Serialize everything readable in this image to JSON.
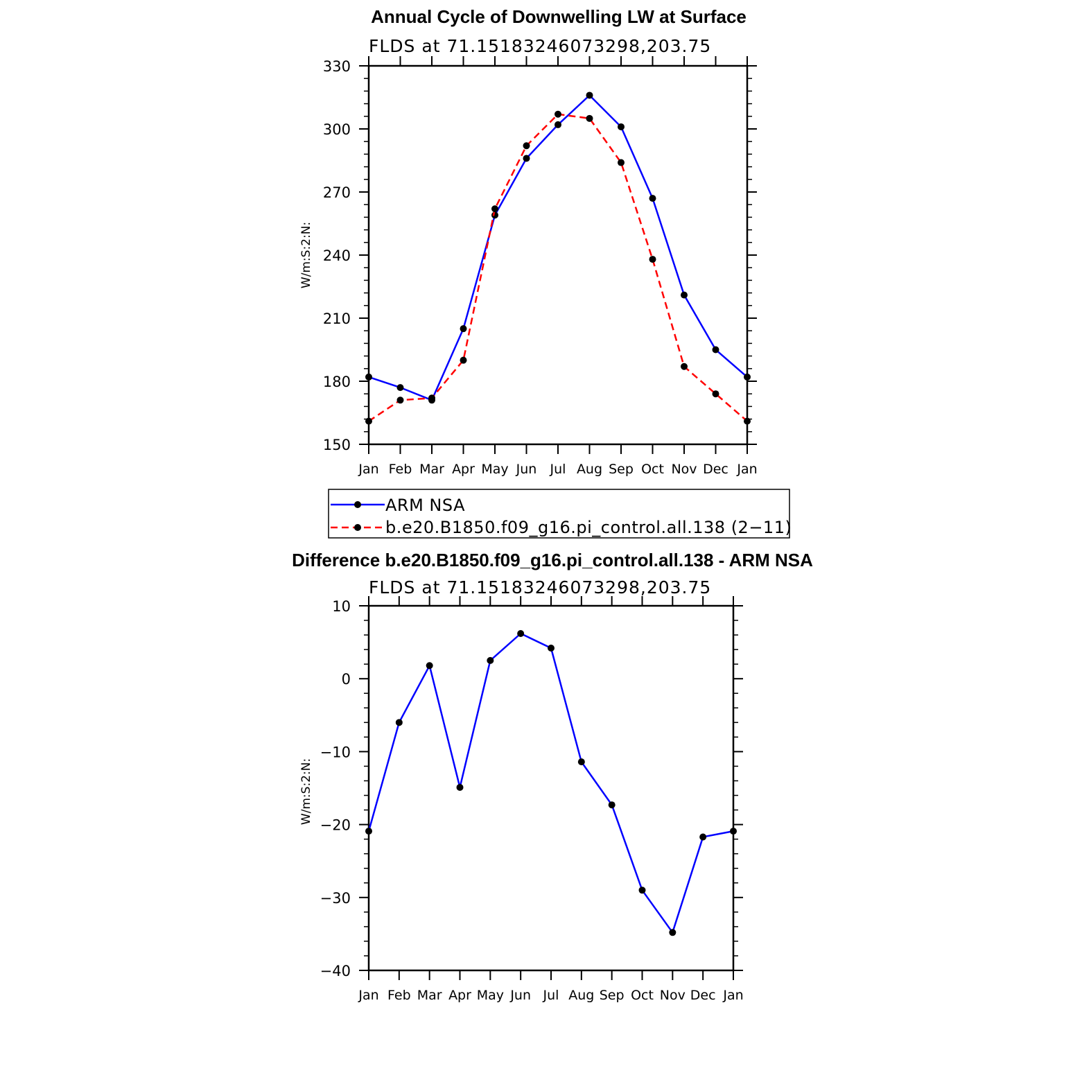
{
  "chart_data": [
    {
      "type": "line",
      "title": "Annual Cycle of Downwelling LW at Surface",
      "subtitle": "FLDS at 71.15183246073298,203.75",
      "ylabel": "W/m:S:2:N:",
      "xlabel": "",
      "categories": [
        "Jan",
        "Feb",
        "Mar",
        "Apr",
        "May",
        "Jun",
        "Jul",
        "Aug",
        "Sep",
        "Oct",
        "Nov",
        "Dec",
        "Jan"
      ],
      "ylim": [
        150,
        330
      ],
      "yticks": [
        150,
        180,
        210,
        240,
        270,
        300,
        330
      ],
      "series": [
        {
          "name": "ARM NSA",
          "color": "#0000ff",
          "dash": "solid",
          "values": [
            182,
            177,
            171,
            205,
            259,
            286,
            302,
            316,
            301,
            267,
            221,
            195,
            182
          ]
        },
        {
          "name": "b.e20.B1850.f09_g16.pi_control.all.138 (2−11)",
          "color": "#ff0000",
          "dash": "dashed",
          "values": [
            161,
            171,
            172,
            190,
            262,
            292,
            307,
            305,
            284,
            238,
            187,
            174,
            161
          ]
        }
      ],
      "legend_placement": "below"
    },
    {
      "type": "line",
      "title": "Difference b.e20.B1850.f09_g16.pi_control.all.138 - ARM NSA",
      "subtitle": "FLDS at 71.15183246073298,203.75",
      "ylabel": "W/m:S:2:N:",
      "xlabel": "",
      "categories": [
        "Jan",
        "Feb",
        "Mar",
        "Apr",
        "May",
        "Jun",
        "Jul",
        "Aug",
        "Sep",
        "Oct",
        "Nov",
        "Dec",
        "Jan"
      ],
      "ylim": [
        -40,
        10
      ],
      "yticks": [
        -40,
        -30,
        -20,
        -10,
        0,
        10
      ],
      "ytick_labels": [
        "−40",
        "−30",
        "−20",
        "−10",
        "0",
        "10"
      ],
      "series": [
        {
          "color": "#0000ff",
          "dash": "solid",
          "values": [
            -20.9,
            -6.0,
            1.8,
            -14.9,
            2.5,
            6.2,
            4.2,
            -11.4,
            -17.3,
            -29.0,
            -34.8,
            -21.7,
            -20.9
          ]
        }
      ]
    }
  ]
}
